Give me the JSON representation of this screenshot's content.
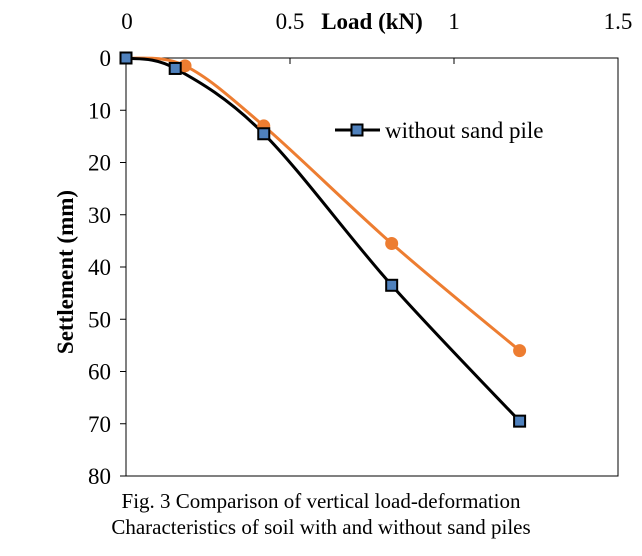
{
  "caption": {
    "line1": "Fig. 3 Comparison of vertical load-deformation",
    "line2": "Characteristics of soil with and without sand piles"
  },
  "chart_data": {
    "type": "line",
    "title": "",
    "xlabel": "Load (kN)",
    "ylabel": "Settlement (mm)",
    "xlim": [
      0,
      1.5
    ],
    "ylim": [
      0,
      80
    ],
    "y_inverted": true,
    "x_axis_position": "top",
    "x_ticks": [
      "0",
      "0.5",
      "1",
      "1.5"
    ],
    "y_ticks": [
      "0",
      "10",
      "20",
      "30",
      "40",
      "50",
      "60",
      "70",
      "80"
    ],
    "grid": false,
    "legend_position": "top-right",
    "series": [
      {
        "name": "without sand pile",
        "color": "#000000",
        "marker": "square",
        "marker_fill": "#4f81bd",
        "x": [
          0,
          0.15,
          0.42,
          0.81,
          1.2
        ],
        "y": [
          0,
          2,
          14.5,
          43.5,
          69.5
        ]
      },
      {
        "color": "#ed7d31",
        "marker": "circle",
        "marker_fill": "#ed7d31",
        "x": [
          0,
          0.18,
          0.42,
          0.81,
          1.2
        ],
        "y": [
          0,
          1.5,
          13,
          35.5,
          56
        ]
      }
    ]
  }
}
